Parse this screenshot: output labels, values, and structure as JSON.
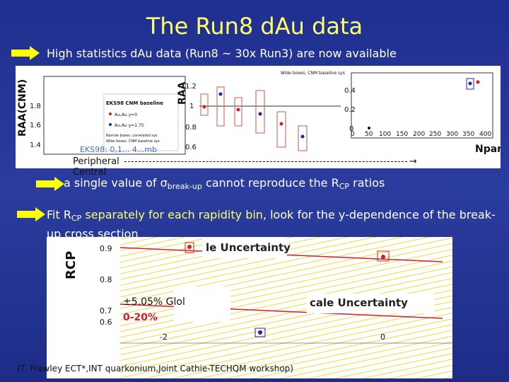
{
  "title": "The Run8 dAu data",
  "bullet1": "High statistics dAu data (Run8 ~ 30x Run3) are now available",
  "top_panel": {
    "ylabel_left": "RAA(CNM)",
    "legend_title": "EKS98 CNM baseline",
    "legend_y0": "Au,Au y=0",
    "legend_y175": "Au,Au y=1.75",
    "narrow_boxes": "Narrow boxes: correlated sys",
    "wide_boxes": "Wide boxes: CNM baseline sys",
    "wide_boxes_top": "Wide boxes: CNM baseline sys",
    "ylabel_mid": "RAA",
    "ticks_left": [
      "1.8",
      "1.6",
      "1.4"
    ],
    "ticks_mid": [
      "1.2",
      "1",
      "0.8",
      "0.6"
    ],
    "ticks_right_y": [
      "0.4",
      "0.2",
      "0"
    ],
    "ticks_right_x": [
      "0",
      "50",
      "100",
      "150",
      "200",
      "250",
      "300",
      "350",
      "400"
    ],
    "xlabel_right": "Npart",
    "eks_label": "EKS98: 0,1... 4...mb",
    "peripheral": "Peripheral",
    "central": "Central"
  },
  "bullet2_prefix": "a single value of ",
  "bullet2_sigma": "σ",
  "bullet2_sub": "break-up",
  "bullet2_suffix": " cannot reproduce the R",
  "bullet2_cp": "CP",
  "bullet2_end": " ratios",
  "bullet3_a": "Fit R",
  "bullet3_cp": "CP",
  "bullet3_b": " separately for each rapidity bin",
  "bullet3_c": ", look for the y-dependence of the break-up cross section",
  "bottom_panel": {
    "ylabel": "RCP",
    "ticks_y": [
      "0.9",
      "0.8",
      "0.7",
      "0.6"
    ],
    "ticks_x": [
      "-2",
      "0"
    ],
    "uncert_top": "le Uncertainty",
    "uncert_right": "cale Uncertainty",
    "glob": "±5.05% Glol",
    "centrality": "0-20%"
  },
  "credit": "(T. Frawley ECT*,INT quarkonium,Joint Cathie-TECHQM workshop)",
  "colors": {
    "title": "#ffff66",
    "accent": "#ffff66",
    "arrow": "#ffff00",
    "band_yellow": "#f2d83a",
    "band_red": "#cc1f3f"
  }
}
